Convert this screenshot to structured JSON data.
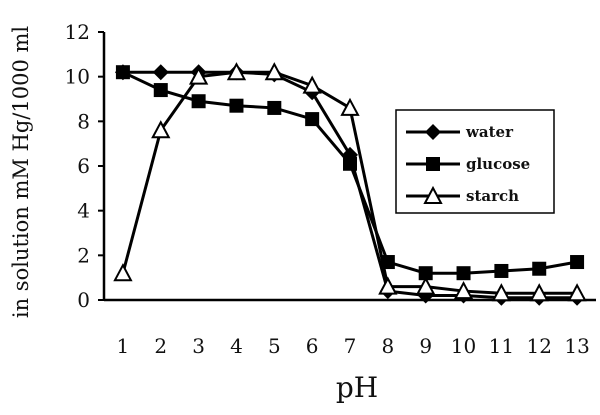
{
  "chart_data": {
    "type": "line",
    "xlabel": "pH",
    "ylabel": "in solution mM Hg/1000 ml",
    "x": [
      1,
      2,
      3,
      4,
      5,
      6,
      7,
      8,
      9,
      10,
      11,
      12,
      13
    ],
    "xlim": [
      0.5,
      13.5
    ],
    "ylim": [
      0,
      12
    ],
    "yticks": [
      0,
      2,
      4,
      6,
      8,
      10,
      12
    ],
    "grid": false,
    "legend_position": "right",
    "series": [
      {
        "name": "water",
        "marker": "diamond",
        "values": [
          10.2,
          10.2,
          10.2,
          10.2,
          10.1,
          9.3,
          6.5,
          0.4,
          0.2,
          0.2,
          0.1,
          0.1,
          0.1
        ]
      },
      {
        "name": "glucose",
        "marker": "square",
        "values": [
          10.2,
          9.4,
          8.9,
          8.7,
          8.6,
          8.1,
          6.1,
          1.7,
          1.2,
          1.2,
          1.3,
          1.4,
          1.7
        ]
      },
      {
        "name": "starch",
        "marker": "triangle",
        "values": [
          1.2,
          7.6,
          10.0,
          10.2,
          10.2,
          9.6,
          8.6,
          0.6,
          0.6,
          0.4,
          0.3,
          0.3,
          0.3
        ]
      }
    ]
  }
}
